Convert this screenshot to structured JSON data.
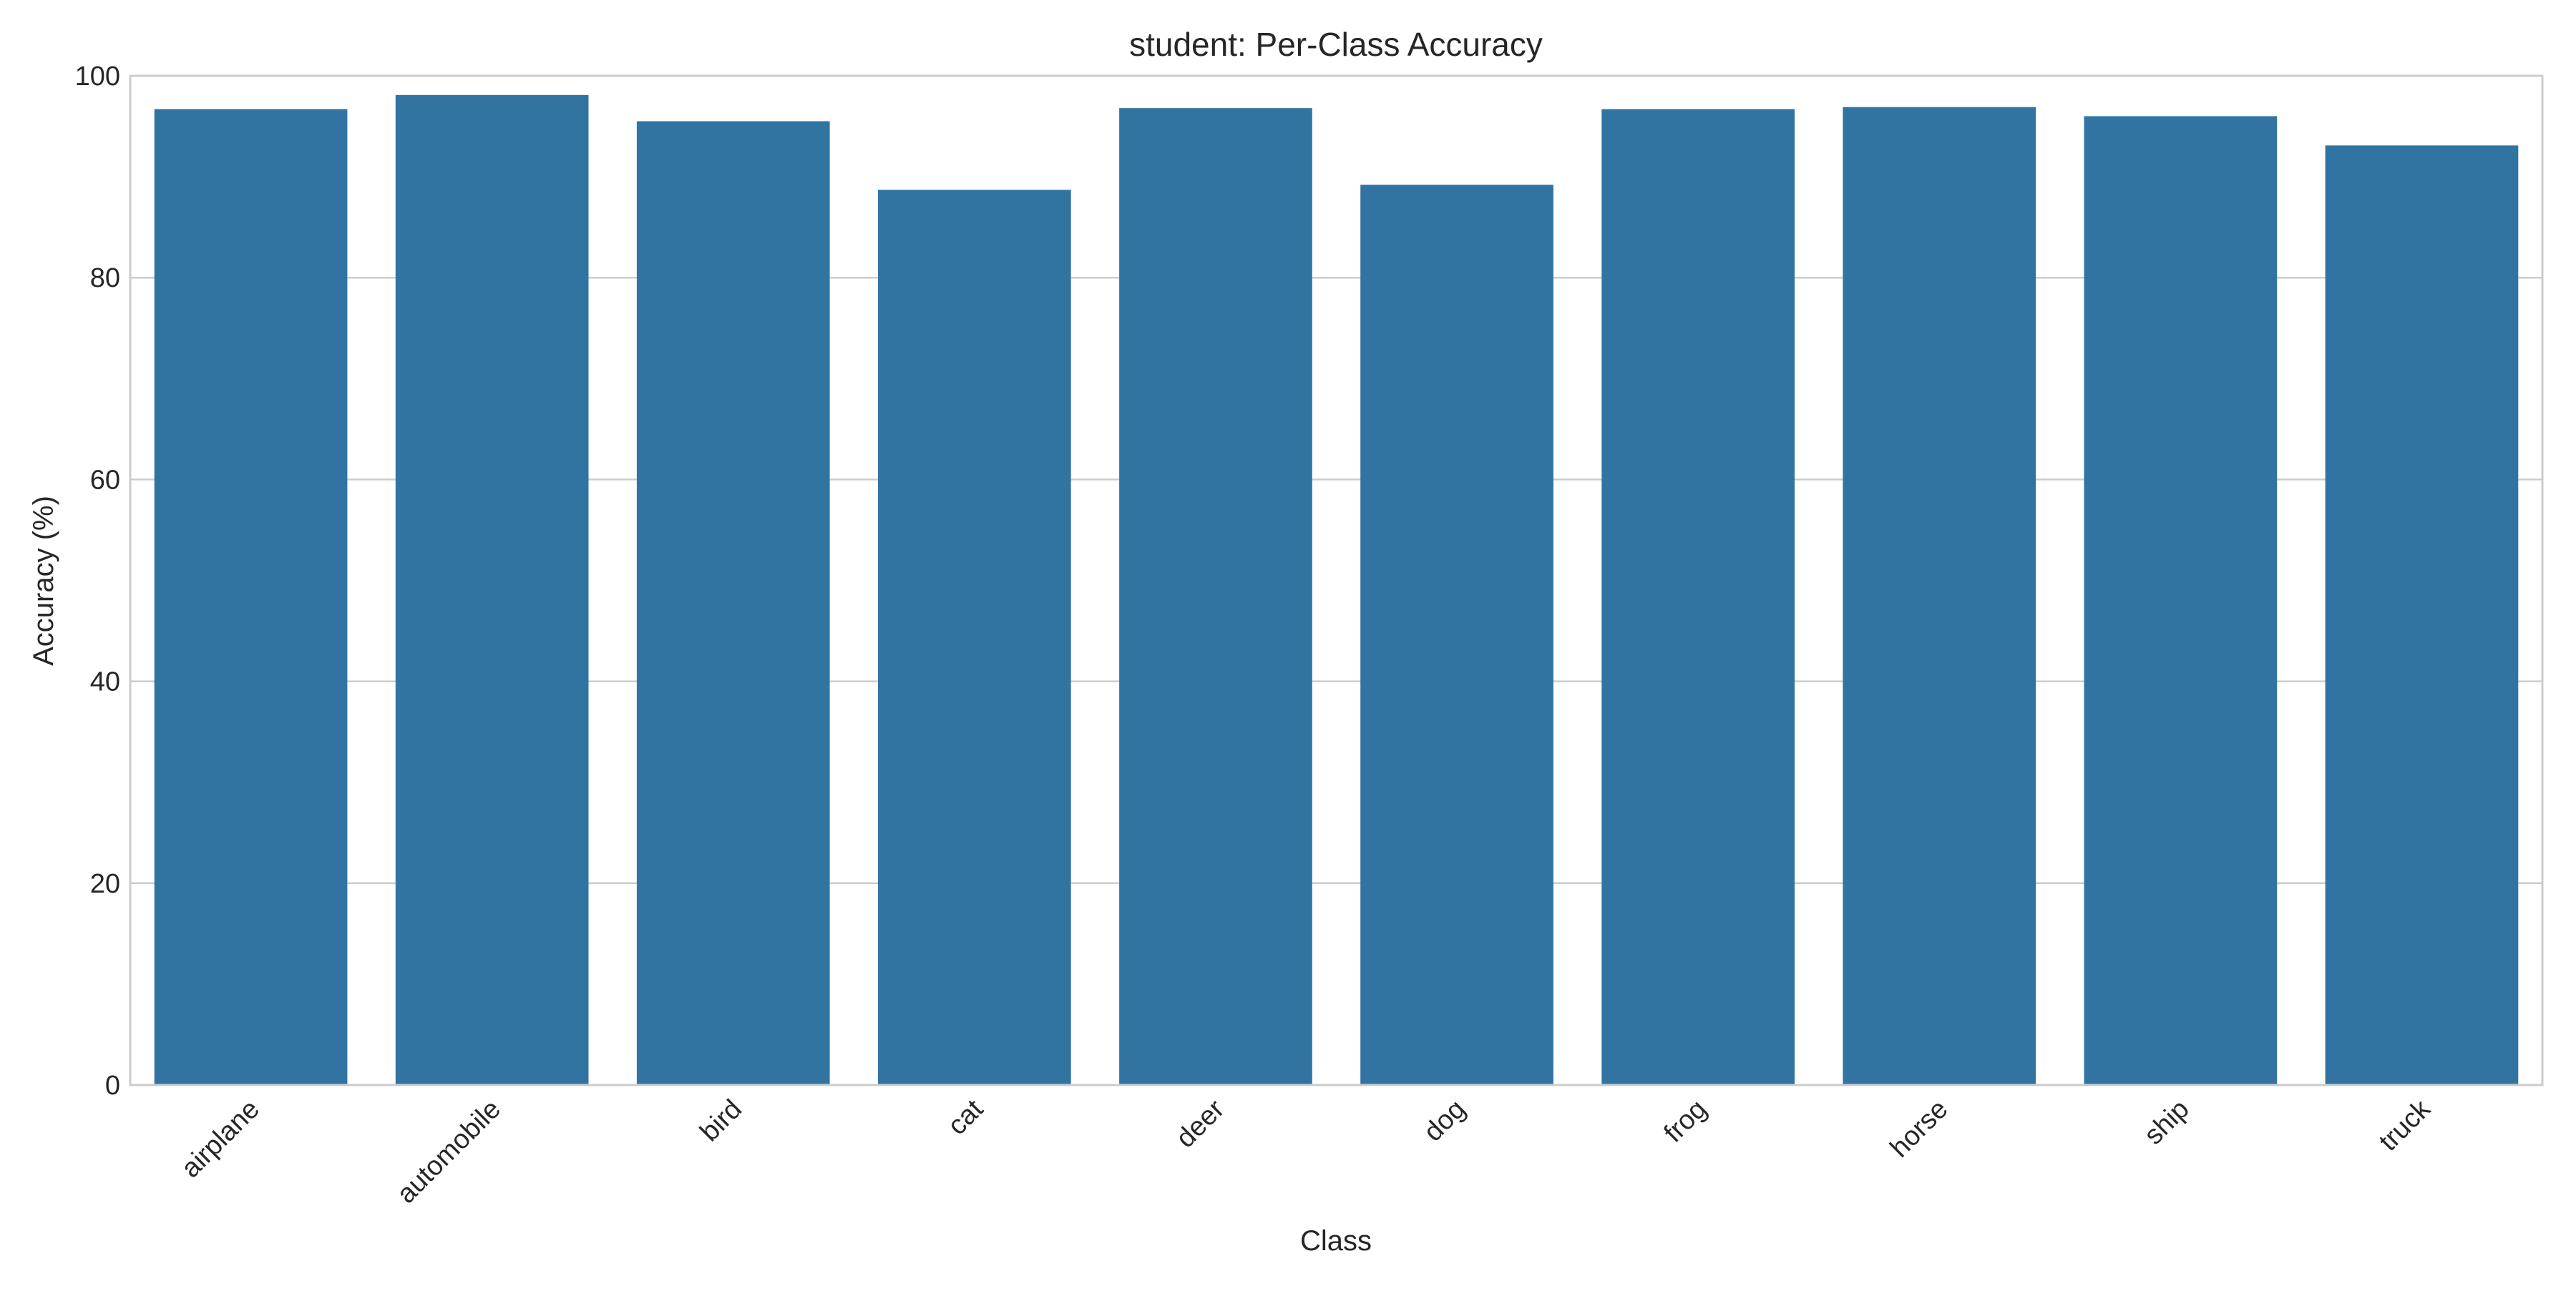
{
  "chart_data": {
    "type": "bar",
    "title": "student: Per-Class Accuracy",
    "xlabel": "Class",
    "ylabel": "Accuracy (%)",
    "categories": [
      "airplane",
      "automobile",
      "bird",
      "cat",
      "deer",
      "dog",
      "frog",
      "horse",
      "ship",
      "truck"
    ],
    "values": [
      96.7,
      98.1,
      95.5,
      88.7,
      96.8,
      89.2,
      96.7,
      96.9,
      96.0,
      93.1
    ],
    "ylim": [
      0,
      100
    ],
    "yticks": [
      0,
      20,
      40,
      60,
      80,
      100
    ],
    "grid": true,
    "bar_color": "#3274a1",
    "grid_color": "#cccccc",
    "spine_color": "#cccccc",
    "text_color": "#262626",
    "legend": "none"
  }
}
